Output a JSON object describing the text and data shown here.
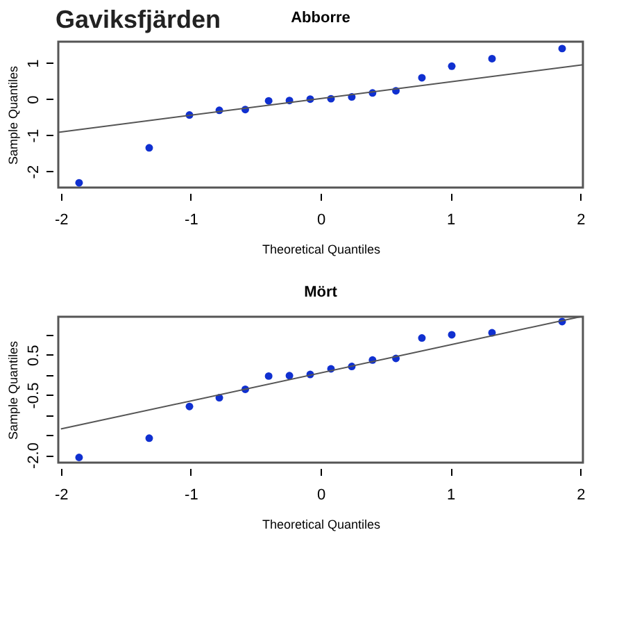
{
  "chart_data": [
    {
      "type": "scatter",
      "title": "Abborre",
      "annotations": [
        "Gaviksfjärden"
      ],
      "xlabel": "Theoretical Quantiles",
      "ylabel": "Sample Quantiles",
      "xlim": [
        -2.02,
        2.02
      ],
      "ylim": [
        -2.45,
        1.59
      ],
      "xticks": [
        -2,
        -1,
        0,
        1,
        2
      ],
      "yticks": [
        -2,
        -1,
        0,
        1
      ],
      "grid": false,
      "series": [
        {
          "type": "scatter",
          "marker": "circle",
          "color": "#1030d0",
          "x": [
            -1.86,
            -1.32,
            -1.01,
            -0.78,
            -0.58,
            -0.4,
            -0.24,
            -0.08,
            0.08,
            0.24,
            0.4,
            0.58,
            0.78,
            1.01,
            1.32,
            1.86
          ],
          "values": [
            -2.32,
            -1.35,
            -0.44,
            -0.31,
            -0.29,
            -0.05,
            -0.04,
            0.0,
            0.01,
            0.06,
            0.17,
            0.23,
            0.59,
            0.91,
            1.12,
            1.4
          ]
        },
        {
          "type": "line",
          "color": "#555555",
          "x": [
            -2.02,
            2.02
          ],
          "values": [
            -0.92,
            0.95
          ]
        }
      ]
    },
    {
      "type": "scatter",
      "title": "Mört",
      "xlabel": "Theoretical Quantiles",
      "ylabel": "Sample Quantiles",
      "xlim": [
        -2.02,
        2.02
      ],
      "ylim": [
        -2.19,
        1.45
      ],
      "xticks": [
        -2,
        -1,
        0,
        1,
        2
      ],
      "yticks": [
        {
          "value": -2,
          "label": "-2.0"
        },
        {
          "value": -1.5,
          "label": null
        },
        {
          "value": -1,
          "label": null
        },
        {
          "value": -0.5,
          "label": "-0.5"
        },
        {
          "value": 0,
          "label": null
        },
        {
          "value": 0.5,
          "label": "0.5"
        },
        {
          "value": 1,
          "label": null
        }
      ],
      "grid": false,
      "series": [
        {
          "type": "scatter",
          "marker": "circle",
          "color": "#1030d0",
          "x": [
            -1.86,
            -1.32,
            -1.01,
            -0.78,
            -0.58,
            -0.4,
            -0.24,
            -0.08,
            0.08,
            0.24,
            0.4,
            0.58,
            0.78,
            1.01,
            1.32,
            1.86
          ],
          "values": [
            -2.06,
            -1.58,
            -0.79,
            -0.57,
            -0.36,
            -0.03,
            -0.02,
            0.01,
            0.15,
            0.21,
            0.37,
            0.41,
            0.92,
            1.0,
            1.05,
            1.33
          ]
        },
        {
          "type": "line",
          "color": "#555555",
          "x": [
            -2.0,
            2.0
          ],
          "values": [
            -1.35,
            1.45
          ]
        }
      ]
    }
  ]
}
